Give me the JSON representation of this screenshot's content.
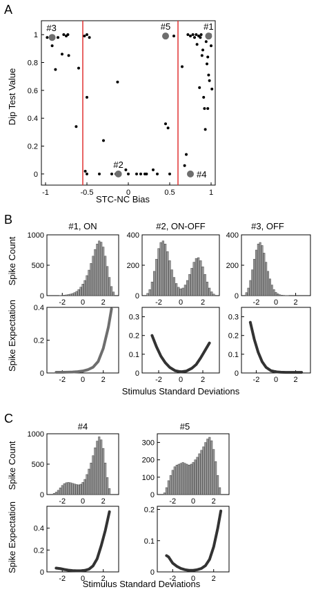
{
  "panels": {
    "A": "A",
    "B": "B",
    "C": "C"
  },
  "chart_data": [
    {
      "type": "scatter",
      "panel": "A",
      "xlabel": "STC-NC Bias",
      "ylabel": "Dip Test Value",
      "xlim": [
        -1.05,
        1.05
      ],
      "ylim": [
        -0.08,
        1.1
      ],
      "xticks": [
        "-1",
        "-0.5",
        "0",
        "0.5",
        "1"
      ],
      "yticks": [
        "0",
        "0.2",
        "0.4",
        "0.6",
        "0.8",
        "1"
      ],
      "threshold_lines": [
        -0.55,
        0.6
      ],
      "threshold_color": "#e03030",
      "point_color": "#000000",
      "highlight_color": "#6e6e6e",
      "points": [
        [
          -0.98,
          0.98
        ],
        [
          -0.92,
          0.92
        ],
        [
          -0.88,
          0.75
        ],
        [
          -0.85,
          0.98
        ],
        [
          -0.8,
          0.86
        ],
        [
          -0.78,
          1.0
        ],
        [
          -0.75,
          0.99
        ],
        [
          -0.73,
          1.0
        ],
        [
          -0.72,
          0.85
        ],
        [
          -0.63,
          0.34
        ],
        [
          -0.6,
          0.76
        ],
        [
          -0.53,
          0.99
        ],
        [
          -0.5,
          1.0
        ],
        [
          -0.47,
          0.98
        ],
        [
          -0.5,
          0.55
        ],
        [
          -0.52,
          0.02
        ],
        [
          -0.5,
          0.0
        ],
        [
          -0.35,
          0.0
        ],
        [
          -0.3,
          0.24
        ],
        [
          -0.2,
          0.0
        ],
        [
          -0.15,
          0.0
        ],
        [
          -0.13,
          0.66
        ],
        [
          -0.03,
          0.03
        ],
        [
          0.0,
          0.0
        ],
        [
          0.1,
          0.0
        ],
        [
          0.15,
          0.0
        ],
        [
          0.2,
          0.0
        ],
        [
          0.22,
          0.0
        ],
        [
          0.3,
          0.03
        ],
        [
          0.35,
          0.0
        ],
        [
          0.45,
          0.36
        ],
        [
          0.48,
          0.33
        ],
        [
          0.5,
          0.0
        ],
        [
          0.55,
          0.99
        ],
        [
          0.65,
          0.77
        ],
        [
          0.68,
          0.06
        ],
        [
          0.7,
          0.14
        ],
        [
          0.72,
          1.0
        ],
        [
          0.75,
          0.99
        ],
        [
          0.78,
          1.0
        ],
        [
          0.8,
          0.98
        ],
        [
          0.82,
          1.0
        ],
        [
          0.83,
          0.93
        ],
        [
          0.85,
          0.99
        ],
        [
          0.86,
          0.62
        ],
        [
          0.87,
          0.98
        ],
        [
          0.88,
          1.0
        ],
        [
          0.89,
          0.85
        ],
        [
          0.9,
          0.89
        ],
        [
          0.91,
          0.55
        ],
        [
          0.92,
          0.47
        ],
        [
          0.93,
          0.32
        ],
        [
          0.94,
          0.95
        ],
        [
          0.95,
          0.79
        ],
        [
          0.96,
          0.84
        ],
        [
          0.97,
          0.71
        ],
        [
          0.98,
          0.67
        ],
        [
          0.99,
          1.0
        ],
        [
          1.0,
          0.92
        ],
        [
          1.01,
          0.61
        ],
        [
          0.96,
          0.47
        ]
      ],
      "highlighted": [
        {
          "label": "#1",
          "x": 0.97,
          "y": 0.99
        },
        {
          "label": "#2",
          "x": -0.12,
          "y": 0.0
        },
        {
          "label": "#3",
          "x": -0.92,
          "y": 0.98
        },
        {
          "label": "#4",
          "x": 0.75,
          "y": 0.0
        },
        {
          "label": "#5",
          "x": 0.45,
          "y": 0.99
        }
      ]
    },
    {
      "type": "bar",
      "panel": "B",
      "title": "#1, ON",
      "ylabel": "Spike Count",
      "xlim": [
        -3.5,
        3.5
      ],
      "ylim": [
        0,
        1000
      ],
      "xticks": [
        "-2",
        "0",
        "2"
      ],
      "yticks": [
        "0",
        "500",
        "1000"
      ],
      "bins": [
        -2.2,
        -2.0,
        -1.8,
        -1.6,
        -1.4,
        -1.2,
        -1.0,
        -0.8,
        -0.6,
        -0.4,
        -0.2,
        0.0,
        0.2,
        0.4,
        0.6,
        0.8,
        1.0,
        1.2,
        1.4,
        1.6,
        1.8,
        2.0,
        2.2,
        2.4,
        2.6,
        2.8,
        3.0
      ],
      "values": [
        2,
        5,
        8,
        12,
        18,
        25,
        35,
        50,
        70,
        100,
        140,
        190,
        250,
        330,
        420,
        530,
        650,
        760,
        850,
        900,
        880,
        800,
        650,
        480,
        300,
        150,
        60
      ]
    },
    {
      "type": "bar",
      "panel": "B",
      "title": "#2, ON-OFF",
      "ylabel": "",
      "xlim": [
        -3.5,
        3.5
      ],
      "ylim": [
        0,
        400
      ],
      "xticks": [
        "-2",
        "0",
        "2"
      ],
      "yticks": [
        "0",
        "200",
        "400"
      ],
      "bins": [
        -3.0,
        -2.8,
        -2.6,
        -2.4,
        -2.2,
        -2.0,
        -1.8,
        -1.6,
        -1.4,
        -1.2,
        -1.0,
        -0.8,
        -0.6,
        -0.4,
        -0.2,
        0.0,
        0.2,
        0.4,
        0.6,
        0.8,
        1.0,
        1.2,
        1.4,
        1.6,
        1.8,
        2.0,
        2.2,
        2.4,
        2.6,
        2.8,
        3.0
      ],
      "values": [
        15,
        40,
        90,
        160,
        240,
        310,
        350,
        360,
        340,
        290,
        230,
        170,
        120,
        80,
        55,
        45,
        50,
        70,
        100,
        140,
        180,
        220,
        245,
        250,
        230,
        190,
        140,
        90,
        50,
        25,
        10
      ]
    },
    {
      "type": "bar",
      "panel": "B",
      "title": "#3, OFF",
      "ylabel": "",
      "xlim": [
        -3.5,
        3.5
      ],
      "ylim": [
        0,
        400
      ],
      "xticks": [
        "-2",
        "0",
        "2"
      ],
      "yticks": [
        "0",
        "200",
        "400"
      ],
      "bins": [
        -3.0,
        -2.8,
        -2.6,
        -2.4,
        -2.2,
        -2.0,
        -1.8,
        -1.6,
        -1.4,
        -1.2,
        -1.0,
        -0.8,
        -0.6,
        -0.4,
        -0.2,
        0.0,
        0.2,
        0.4,
        0.6,
        0.8,
        1.0,
        1.2
      ],
      "values": [
        20,
        50,
        100,
        170,
        240,
        300,
        340,
        350,
        330,
        280,
        220,
        160,
        110,
        70,
        40,
        22,
        12,
        6,
        3,
        2,
        1,
        1
      ]
    },
    {
      "type": "line",
      "panel": "B",
      "ylabel": "Spike Expectation",
      "xlabel": "Stimulus Standard Deviations",
      "xlim": [
        -3.5,
        3.5
      ],
      "ylim": [
        0,
        0.4
      ],
      "xticks": [
        "-2",
        "0",
        "2"
      ],
      "yticks": [
        "0",
        "0.2",
        "0.4"
      ],
      "line_color": "#6e6e6e",
      "x": [
        -2.6,
        -2.0,
        -1.5,
        -1.0,
        -0.5,
        0.0,
        0.5,
        1.0,
        1.5,
        2.0,
        2.5,
        2.8
      ],
      "y": [
        0.004,
        0.004,
        0.005,
        0.006,
        0.008,
        0.012,
        0.02,
        0.035,
        0.07,
        0.15,
        0.28,
        0.39
      ]
    },
    {
      "type": "line",
      "panel": "B",
      "ylabel": "",
      "xlabel": "Stimulus Standard Deviations",
      "xlim": [
        -3.5,
        3.5
      ],
      "ylim": [
        0,
        0.35
      ],
      "xticks": [
        "-2",
        "0",
        "2"
      ],
      "yticks": [
        "0",
        "0.1",
        "0.2",
        "0.3"
      ],
      "line_color": "#333333",
      "x": [
        -2.6,
        -2.2,
        -1.8,
        -1.4,
        -1.0,
        -0.5,
        0.0,
        0.5,
        1.0,
        1.4,
        1.8,
        2.2,
        2.6
      ],
      "y": [
        0.2,
        0.14,
        0.09,
        0.055,
        0.03,
        0.012,
        0.006,
        0.01,
        0.025,
        0.045,
        0.08,
        0.12,
        0.16
      ]
    },
    {
      "type": "line",
      "panel": "B",
      "ylabel": "",
      "xlabel": "Stimulus Standard Deviations",
      "xlim": [
        -3.5,
        3.5
      ],
      "ylim": [
        0,
        0.35
      ],
      "xticks": [
        "-2",
        "0",
        "2"
      ],
      "yticks": [
        "0",
        "0.1",
        "0.2",
        "0.3"
      ],
      "line_color": "#333333",
      "x": [
        -2.6,
        -2.2,
        -1.8,
        -1.4,
        -1.0,
        -0.5,
        0.0,
        0.5,
        1.0,
        1.5,
        2.0,
        2.6
      ],
      "y": [
        0.27,
        0.18,
        0.11,
        0.06,
        0.03,
        0.012,
        0.006,
        0.004,
        0.003,
        0.003,
        0.003,
        0.003
      ]
    },
    {
      "type": "bar",
      "panel": "C",
      "title": "#4",
      "ylabel": "Spike Count",
      "xlim": [
        -3.5,
        3.5
      ],
      "ylim": [
        0,
        1000
      ],
      "xticks": [
        "-2",
        "0",
        "2"
      ],
      "yticks": [
        "0",
        "500",
        "1000"
      ],
      "bins": [
        -2.8,
        -2.6,
        -2.4,
        -2.2,
        -2.0,
        -1.8,
        -1.6,
        -1.4,
        -1.2,
        -1.0,
        -0.8,
        -0.6,
        -0.4,
        -0.2,
        0.0,
        0.2,
        0.4,
        0.6,
        0.8,
        1.0,
        1.2,
        1.4,
        1.6,
        1.8,
        2.0,
        2.2,
        2.4,
        2.6
      ],
      "values": [
        20,
        40,
        70,
        110,
        150,
        180,
        195,
        200,
        195,
        185,
        175,
        165,
        160,
        170,
        200,
        250,
        330,
        420,
        520,
        640,
        770,
        880,
        950,
        900,
        760,
        520,
        280,
        100
      ]
    },
    {
      "type": "bar",
      "panel": "C",
      "title": "#5",
      "ylabel": "",
      "xlim": [
        -3.5,
        3.5
      ],
      "ylim": [
        0,
        350
      ],
      "xticks": [
        "-2",
        "0",
        "2"
      ],
      "yticks": [
        "0",
        "100",
        "200",
        "300"
      ],
      "bins": [
        -2.8,
        -2.6,
        -2.4,
        -2.2,
        -2.0,
        -1.8,
        -1.6,
        -1.4,
        -1.2,
        -1.0,
        -0.8,
        -0.6,
        -0.4,
        -0.2,
        0.0,
        0.2,
        0.4,
        0.6,
        0.8,
        1.0,
        1.2,
        1.4,
        1.6,
        1.8,
        2.0,
        2.2,
        2.4,
        2.6
      ],
      "values": [
        10,
        40,
        80,
        110,
        140,
        160,
        170,
        175,
        180,
        185,
        180,
        175,
        170,
        175,
        185,
        200,
        215,
        235,
        255,
        275,
        300,
        320,
        330,
        310,
        260,
        190,
        110,
        40
      ]
    },
    {
      "type": "line",
      "panel": "C",
      "ylabel": "Spike Expectation",
      "xlabel": "Stimulus Standard Deviations",
      "xlim": [
        -3.5,
        3.5
      ],
      "ylim": [
        0,
        0.6
      ],
      "xticks": [
        "-2",
        "0",
        "2"
      ],
      "yticks": [
        "0",
        "0.2",
        "0.4"
      ],
      "line_color": "#333333",
      "x": [
        -2.6,
        -2.2,
        -1.8,
        -1.4,
        -1.0,
        -0.6,
        -0.2,
        0.2,
        0.6,
        1.0,
        1.4,
        1.8,
        2.2,
        2.6
      ],
      "y": [
        0.035,
        0.03,
        0.022,
        0.016,
        0.012,
        0.01,
        0.01,
        0.014,
        0.025,
        0.055,
        0.12,
        0.24,
        0.38,
        0.55
      ]
    },
    {
      "type": "line",
      "panel": "C",
      "ylabel": "",
      "xlabel": "Stimulus Standard Deviations",
      "xlim": [
        -3.5,
        3.5
      ],
      "ylim": [
        0,
        0.21
      ],
      "xticks": [
        "-2",
        "0",
        "2"
      ],
      "yticks": [
        "0",
        "0.1",
        "0.2"
      ],
      "line_color": "#333333",
      "x": [
        -2.6,
        -2.4,
        -2.2,
        -2.0,
        -1.6,
        -1.2,
        -0.8,
        -0.4,
        0.0,
        0.4,
        0.8,
        1.2,
        1.6,
        2.0,
        2.4,
        2.7
      ],
      "y": [
        0.052,
        0.048,
        0.038,
        0.028,
        0.018,
        0.011,
        0.007,
        0.005,
        0.005,
        0.007,
        0.011,
        0.02,
        0.04,
        0.08,
        0.14,
        0.195
      ]
    }
  ]
}
